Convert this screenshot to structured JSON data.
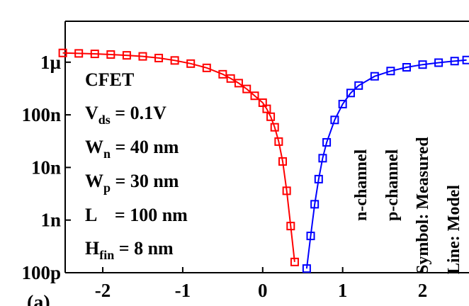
{
  "chart_data": {
    "type": "scatter",
    "log_y": true,
    "xlim": [
      -2.47,
      2.58
    ],
    "xticks": [
      -2,
      -1,
      0,
      1,
      2
    ],
    "ylim": [
      1e-10,
      6e-06
    ],
    "yticks": [
      {
        "value": 1e-10,
        "label": "100p"
      },
      {
        "value": 1e-09,
        "label": "1n"
      },
      {
        "value": 1e-08,
        "label": "10n"
      },
      {
        "value": 1e-07,
        "label": "100n"
      },
      {
        "value": 1e-06,
        "label": "1µ"
      }
    ],
    "series": [
      {
        "color": "#ff0000",
        "x": [
          -2.5,
          -2.3,
          -2.1,
          -1.9,
          -1.7,
          -1.5,
          -1.3,
          -1.1,
          -0.9,
          -0.7,
          -0.5,
          -0.4,
          -0.3,
          -0.2,
          -0.1,
          0,
          0.05,
          0.1,
          0.15,
          0.2,
          0.25,
          0.3,
          0.35,
          0.4
        ],
        "values": [
          1.5e-06,
          1.47e-06,
          1.44e-06,
          1.4e-06,
          1.35e-06,
          1.29e-06,
          1.2e-06,
          1.08e-06,
          9.4e-07,
          7.8e-07,
          5.9e-07,
          4.9e-07,
          4e-07,
          3.1e-07,
          2.3e-07,
          1.7e-07,
          1.3e-07,
          9.2e-08,
          5.8e-08,
          3.1e-08,
          1.3e-08,
          3.6e-09,
          7.7e-10,
          1.6e-10
        ]
      },
      {
        "color": "#0000ff",
        "x": [
          0.55,
          0.6,
          0.65,
          0.7,
          0.75,
          0.8,
          0.9,
          1.0,
          1.1,
          1.2,
          1.4,
          1.6,
          1.8,
          2.0,
          2.2,
          2.4,
          2.55
        ],
        "values": [
          1.2e-10,
          5e-10,
          2e-09,
          6e-09,
          1.5e-08,
          3e-08,
          8e-08,
          1.6e-07,
          2.6e-07,
          3.6e-07,
          5.4e-07,
          6.8e-07,
          8e-07,
          9e-07,
          9.8e-07,
          1.05e-06,
          1.1e-06
        ]
      }
    ],
    "annotations": [
      {
        "text": "CFET"
      },
      {
        "text": "V",
        "sub": "ds",
        "rest": " = 0.1V"
      },
      {
        "text": "W",
        "sub": "n",
        "rest": " = 40 nm"
      },
      {
        "text": "W",
        "sub": "p",
        "rest": " = 30 nm"
      },
      {
        "text": "L    = 100 nm"
      },
      {
        "text": "H",
        "sub": "fin",
        "rest": " = 8 nm"
      }
    ],
    "vertical_labels": [
      "n-channel",
      "p-channel",
      "Symbol: Measured",
      "Line: Model"
    ],
    "panel_label": "(a)"
  }
}
